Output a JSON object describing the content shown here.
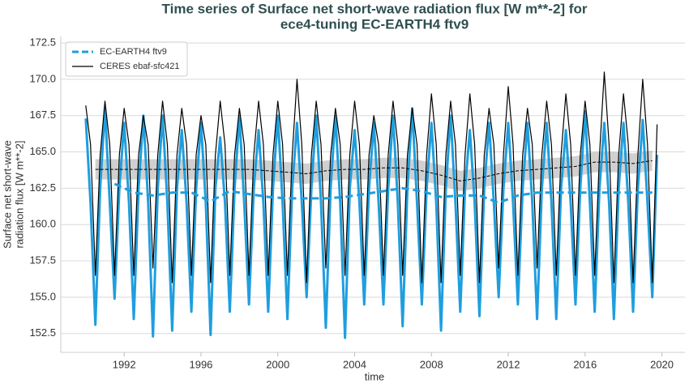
{
  "chart_data": {
    "type": "line",
    "title": [
      "Time series of Surface net short-wave radiation flux [W m**-2] for",
      "ece4-tuning EC-EARTH4 ftv9"
    ],
    "xlabel": "time",
    "ylabel": [
      "Surface net short-wave",
      "radiation flux [W m**-2]"
    ],
    "xlim": [
      1988.7,
      2021.2
    ],
    "xticks": [
      1992,
      1996,
      2000,
      2004,
      2008,
      2012,
      2016,
      2020
    ],
    "ylim": [
      151.2,
      172.95
    ],
    "yticks": [
      152.5,
      {
        "value": 155,
        "label": "155.0"
      },
      157.5,
      {
        "value": 160,
        "label": "160.0"
      },
      162.5,
      {
        "value": 165,
        "label": "165.0"
      },
      167.5,
      {
        "value": 170,
        "label": "170.0"
      },
      172.5
    ],
    "grid": true,
    "legend": "upper left",
    "x": [
      1990,
      1990.25,
      1990.5,
      1990.75,
      1991,
      1991.25,
      1991.5,
      1991.75,
      1992,
      1992.25,
      1992.5,
      1992.75,
      1993,
      1993.25,
      1993.5,
      1993.75,
      1994,
      1994.25,
      1994.5,
      1994.75,
      1995,
      1995.25,
      1995.5,
      1995.75,
      1996,
      1996.25,
      1996.5,
      1996.75,
      1997,
      1997.25,
      1997.5,
      1997.75,
      1998,
      1998.25,
      1998.5,
      1998.75,
      1999,
      1999.25,
      1999.5,
      1999.75,
      2000,
      2000.25,
      2000.5,
      2000.75,
      2001,
      2001.25,
      2001.5,
      2001.75,
      2002,
      2002.25,
      2002.5,
      2002.75,
      2003,
      2003.25,
      2003.5,
      2003.75,
      2004,
      2004.25,
      2004.5,
      2004.75,
      2005,
      2005.25,
      2005.5,
      2005.75,
      2006,
      2006.25,
      2006.5,
      2006.75,
      2007,
      2007.25,
      2007.5,
      2007.75,
      2008,
      2008.25,
      2008.5,
      2008.75,
      2009,
      2009.25,
      2009.5,
      2009.75,
      2010,
      2010.25,
      2010.5,
      2010.75,
      2011,
      2011.25,
      2011.5,
      2011.75,
      2012,
      2012.25,
      2012.5,
      2012.75,
      2013,
      2013.25,
      2013.5,
      2013.75,
      2014,
      2014.25,
      2014.5,
      2014.75,
      2015,
      2015.25,
      2015.5,
      2015.75,
      2016,
      2016.25,
      2016.5,
      2016.75,
      2017,
      2017.25,
      2017.5,
      2017.75,
      2018,
      2018.25,
      2018.5,
      2018.75,
      2019,
      2019.25,
      2019.5,
      2019.75
    ],
    "series": [
      {
        "name": "EC-EARTH4 ftv9",
        "color": "#1f9ede",
        "values": [
          167.3,
          161.5,
          153.1,
          162.5,
          168,
          161.5,
          154.9,
          162.5,
          167,
          161.5,
          153.5,
          162.5,
          167.5,
          161.5,
          152.3,
          162.5,
          167.5,
          161.5,
          152.7,
          162.5,
          166.5,
          161.5,
          154,
          162.5,
          167,
          161.5,
          152.4,
          162.5,
          166,
          161.5,
          154,
          162.5,
          167.5,
          161.5,
          154.5,
          162.5,
          166.5,
          161.5,
          154,
          162.5,
          167.5,
          161.5,
          153.5,
          162.5,
          167,
          161.5,
          155,
          162.5,
          167.5,
          161.5,
          152.9,
          162.5,
          167.5,
          161.5,
          152.2,
          162.5,
          166.5,
          161.5,
          154.5,
          162.5,
          167,
          161.5,
          154.5,
          162.5,
          167.5,
          161.5,
          153,
          162.5,
          168,
          161.5,
          154.5,
          162.5,
          167,
          161.5,
          152.7,
          162.5,
          167.5,
          161.5,
          154,
          162.5,
          166.5,
          161.5,
          153.7,
          162.5,
          167,
          161.5,
          155,
          162.5,
          167,
          161.5,
          154.5,
          162.5,
          167,
          161.5,
          153.5,
          162.5,
          167,
          161.5,
          153.5,
          162.5,
          166.5,
          161.5,
          154.5,
          162.5,
          167.8,
          161.5,
          154,
          162.5,
          167,
          161.5,
          153.5,
          162.5,
          167,
          161.5,
          154,
          162.5,
          167.2,
          161.5,
          155,
          164.8
        ]
      },
      {
        "name": "CERES ebaf-sfc421",
        "color": "#000000",
        "values": [
          168.2,
          165.5,
          156.5,
          164.8,
          168.5,
          165.5,
          156.5,
          164.8,
          168,
          165.5,
          156.5,
          164.8,
          167.5,
          165.5,
          157,
          164.8,
          168.5,
          165.5,
          156,
          164.8,
          168,
          165.5,
          156.5,
          164.8,
          167.5,
          165.5,
          156,
          164.8,
          168.5,
          165.5,
          156.5,
          164.8,
          168,
          165.5,
          156.5,
          164.8,
          168.5,
          165.5,
          156.5,
          164.8,
          168.5,
          165.5,
          156.5,
          164.8,
          170,
          165.5,
          156,
          164.8,
          168.5,
          165.5,
          157,
          164.8,
          168,
          165.5,
          156.5,
          164.8,
          168.5,
          165.5,
          156.5,
          164.8,
          167.5,
          165.5,
          156.5,
          164.8,
          168.5,
          165.5,
          156.5,
          164.8,
          168,
          165.5,
          156,
          164.8,
          169,
          165.5,
          156,
          164.8,
          168.5,
          165.5,
          156.5,
          164.8,
          169,
          165.5,
          156,
          164.8,
          168,
          165.5,
          157,
          164.8,
          169.5,
          165.5,
          156.5,
          164.8,
          168,
          165.5,
          157,
          164.8,
          168.5,
          165.5,
          156.5,
          164.8,
          169,
          165.5,
          156.5,
          164.8,
          168.5,
          165.5,
          156.5,
          164.8,
          170.5,
          165.5,
          156,
          164.8,
          169,
          165.5,
          156,
          164.8,
          170,
          165.5,
          156,
          166.9
        ]
      }
    ],
    "mean_x": [
      1990.5,
      1991.5,
      1992.5,
      1993.5,
      1994.5,
      1995.5,
      1996.5,
      1997.5,
      1998.5,
      1999.5,
      2000.5,
      2001.5,
      2002.5,
      2003.5,
      2004.5,
      2005.5,
      2006.5,
      2007.5,
      2008.5,
      2009.5,
      2010.5,
      2011.5,
      2012.5,
      2013.5,
      2014.5,
      2015.5,
      2016.5,
      2017.5,
      2018.5,
      2019.5
    ],
    "running_means": [
      {
        "color": "#1f9ede",
        "values": [
          null,
          162.8,
          162.2,
          162.0,
          162.2,
          162.2,
          161.6,
          162.3,
          162.1,
          161.9,
          161.8,
          161.8,
          161.8,
          161.9,
          162.1,
          162.3,
          162.5,
          162.3,
          161.9,
          162.0,
          162.0,
          161.5,
          162.0,
          162.2,
          162.2,
          162.2,
          162.2,
          162.2,
          162.2,
          162.2
        ]
      },
      {
        "color": "#000000",
        "values": [
          163.8,
          163.8,
          163.8,
          163.8,
          163.8,
          163.8,
          163.8,
          163.8,
          163.8,
          163.7,
          163.6,
          163.5,
          163.7,
          163.8,
          163.8,
          163.9,
          163.9,
          163.7,
          163.4,
          163.0,
          163.2,
          163.5,
          163.7,
          163.8,
          163.9,
          164.0,
          164.3,
          164.3,
          164.2,
          164.4
        ]
      }
    ],
    "mean_band_lower": [
      163.1,
      163.1,
      163.1,
      163.1,
      163.1,
      163.1,
      163.1,
      163.1,
      163.1,
      163.0,
      162.9,
      162.8,
      163.0,
      163.1,
      163.1,
      163.2,
      163.2,
      163.0,
      162.7,
      162.3,
      162.5,
      162.8,
      163.0,
      163.1,
      163.2,
      163.3,
      163.6,
      163.6,
      163.5,
      163.7
    ],
    "mean_band_upper": [
      164.5,
      164.5,
      164.5,
      164.5,
      164.5,
      164.5,
      164.5,
      164.5,
      164.5,
      164.4,
      164.3,
      164.2,
      164.4,
      164.5,
      164.5,
      164.6,
      164.6,
      164.4,
      164.1,
      163.7,
      163.9,
      164.2,
      164.4,
      164.5,
      164.6,
      164.7,
      165.0,
      165.0,
      164.9,
      165.1
    ]
  }
}
